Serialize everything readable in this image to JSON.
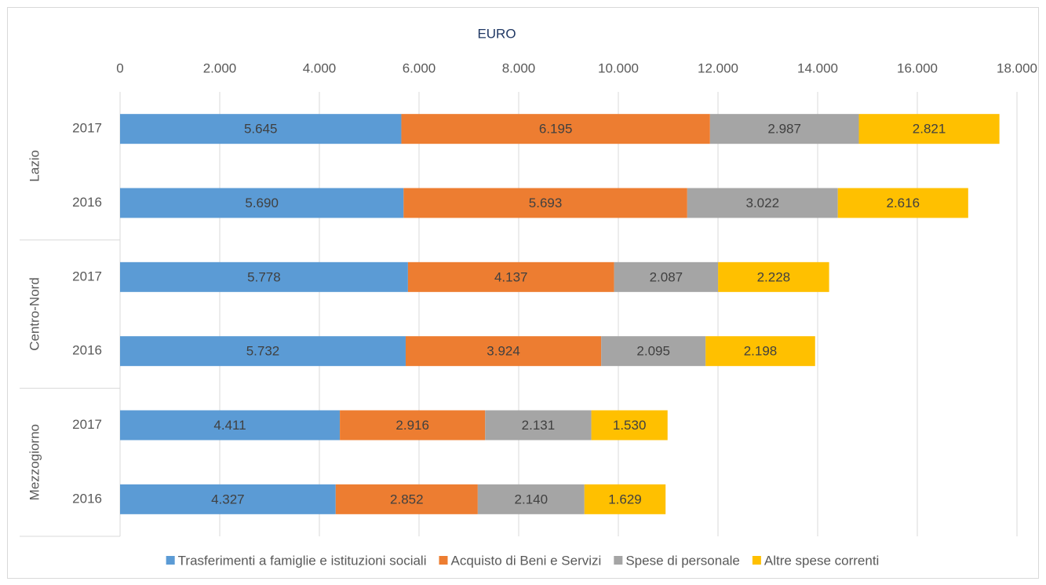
{
  "chart_data": {
    "type": "stacked-bar-horizontal",
    "x_label": "EURO",
    "categories": [
      "2017",
      "2016",
      "2017",
      "2016",
      "2017",
      "2016"
    ],
    "category_groups": [
      "Lazio",
      "Centro-Nord",
      "Mezzogiorno"
    ],
    "series": [
      {
        "name": "Trasferimenti a famiglie e istituzioni sociali",
        "color": "#5b9bd5",
        "values": [
          5645,
          5690,
          5778,
          5732,
          4411,
          4327
        ],
        "value_labels": [
          "5.645",
          "5.690",
          "5.778",
          "5.732",
          "4.411",
          "4.327"
        ]
      },
      {
        "name": "Acquisto di Beni e Servizi",
        "color": "#ed7d31",
        "values": [
          6195,
          5693,
          4137,
          3924,
          2916,
          2852
        ],
        "value_labels": [
          "6.195",
          "5.693",
          "4.137",
          "3.924",
          "2.916",
          "2.852"
        ]
      },
      {
        "name": "Spese di personale",
        "color": "#a5a5a5",
        "values": [
          2987,
          3022,
          2087,
          2095,
          2131,
          2140
        ],
        "value_labels": [
          "2.987",
          "3.022",
          "2.087",
          "2.095",
          "2.131",
          "2.140"
        ]
      },
      {
        "name": "Altre spese correnti",
        "color": "#ffc000",
        "values": [
          2821,
          2616,
          2228,
          2198,
          1530,
          1629
        ],
        "value_labels": [
          "2.821",
          "2.616",
          "2.228",
          "2.198",
          "1.530",
          "1.629"
        ]
      }
    ],
    "xlim": [
      0,
      18000
    ],
    "xticks": [
      0,
      {
        "value": 2000,
        "label": "2.000"
      },
      {
        "value": 4000,
        "label": "4.000"
      },
      {
        "value": 6000,
        "label": "6.000"
      },
      {
        "value": 8000,
        "label": "8.000"
      },
      {
        "value": 10000,
        "label": "10.000"
      },
      {
        "value": 12000,
        "label": "12.000"
      },
      {
        "value": 14000,
        "label": "14.000"
      },
      {
        "value": 16000,
        "label": "16.000"
      },
      {
        "value": 18000,
        "label": "18.000"
      }
    ],
    "grid": true,
    "legend": "bottom"
  }
}
